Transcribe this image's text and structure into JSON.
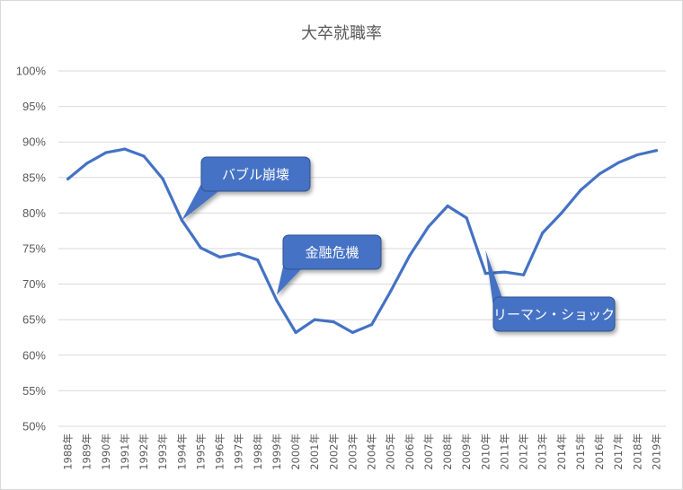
{
  "chart_data": {
    "type": "line",
    "title": "大卒就職率",
    "xlabel": "",
    "ylabel": "",
    "ylim": [
      50,
      100
    ],
    "ytick_step": 5,
    "y_tick_format": "percent",
    "grid": true,
    "legend": "none",
    "categories": [
      "1988年",
      "1989年",
      "1990年",
      "1991年",
      "1992年",
      "1993年",
      "1994年",
      "1995年",
      "1996年",
      "1997年",
      "1998年",
      "1999年",
      "2000年",
      "2001年",
      "2002年",
      "2003年",
      "2004年",
      "2005年",
      "2006年",
      "2007年",
      "2008年",
      "2009年",
      "2010年",
      "2011年",
      "2012年",
      "2013年",
      "2014年",
      "2015年",
      "2016年",
      "2017年",
      "2018年",
      "2019年"
    ],
    "series": [
      {
        "values": [
          84.8,
          87.0,
          88.5,
          89.0,
          88.0,
          84.8,
          79.0,
          75.1,
          73.8,
          74.3,
          73.4,
          67.7,
          63.2,
          65.0,
          64.7,
          63.2,
          64.3,
          69.0,
          74.0,
          78.1,
          81.0,
          79.3,
          71.5,
          71.7,
          71.3,
          77.2,
          80.0,
          83.2,
          85.5,
          87.1,
          88.2,
          88.8
        ],
        "color": "#4472c4"
      }
    ],
    "annotations": [
      {
        "text": "バブル崩壊",
        "category": "1994年",
        "value": 79.0
      },
      {
        "text": "金融危機",
        "category": "1999年",
        "value": 68.5
      },
      {
        "text": "リーマン・ショック",
        "category": "2010年",
        "value": 74.8
      }
    ]
  },
  "colors": {
    "line": "#4472c4",
    "callout_fill": "#4472c4",
    "callout_border": "#2f528f",
    "grid": "#d9d9d9",
    "text": "#595959"
  }
}
